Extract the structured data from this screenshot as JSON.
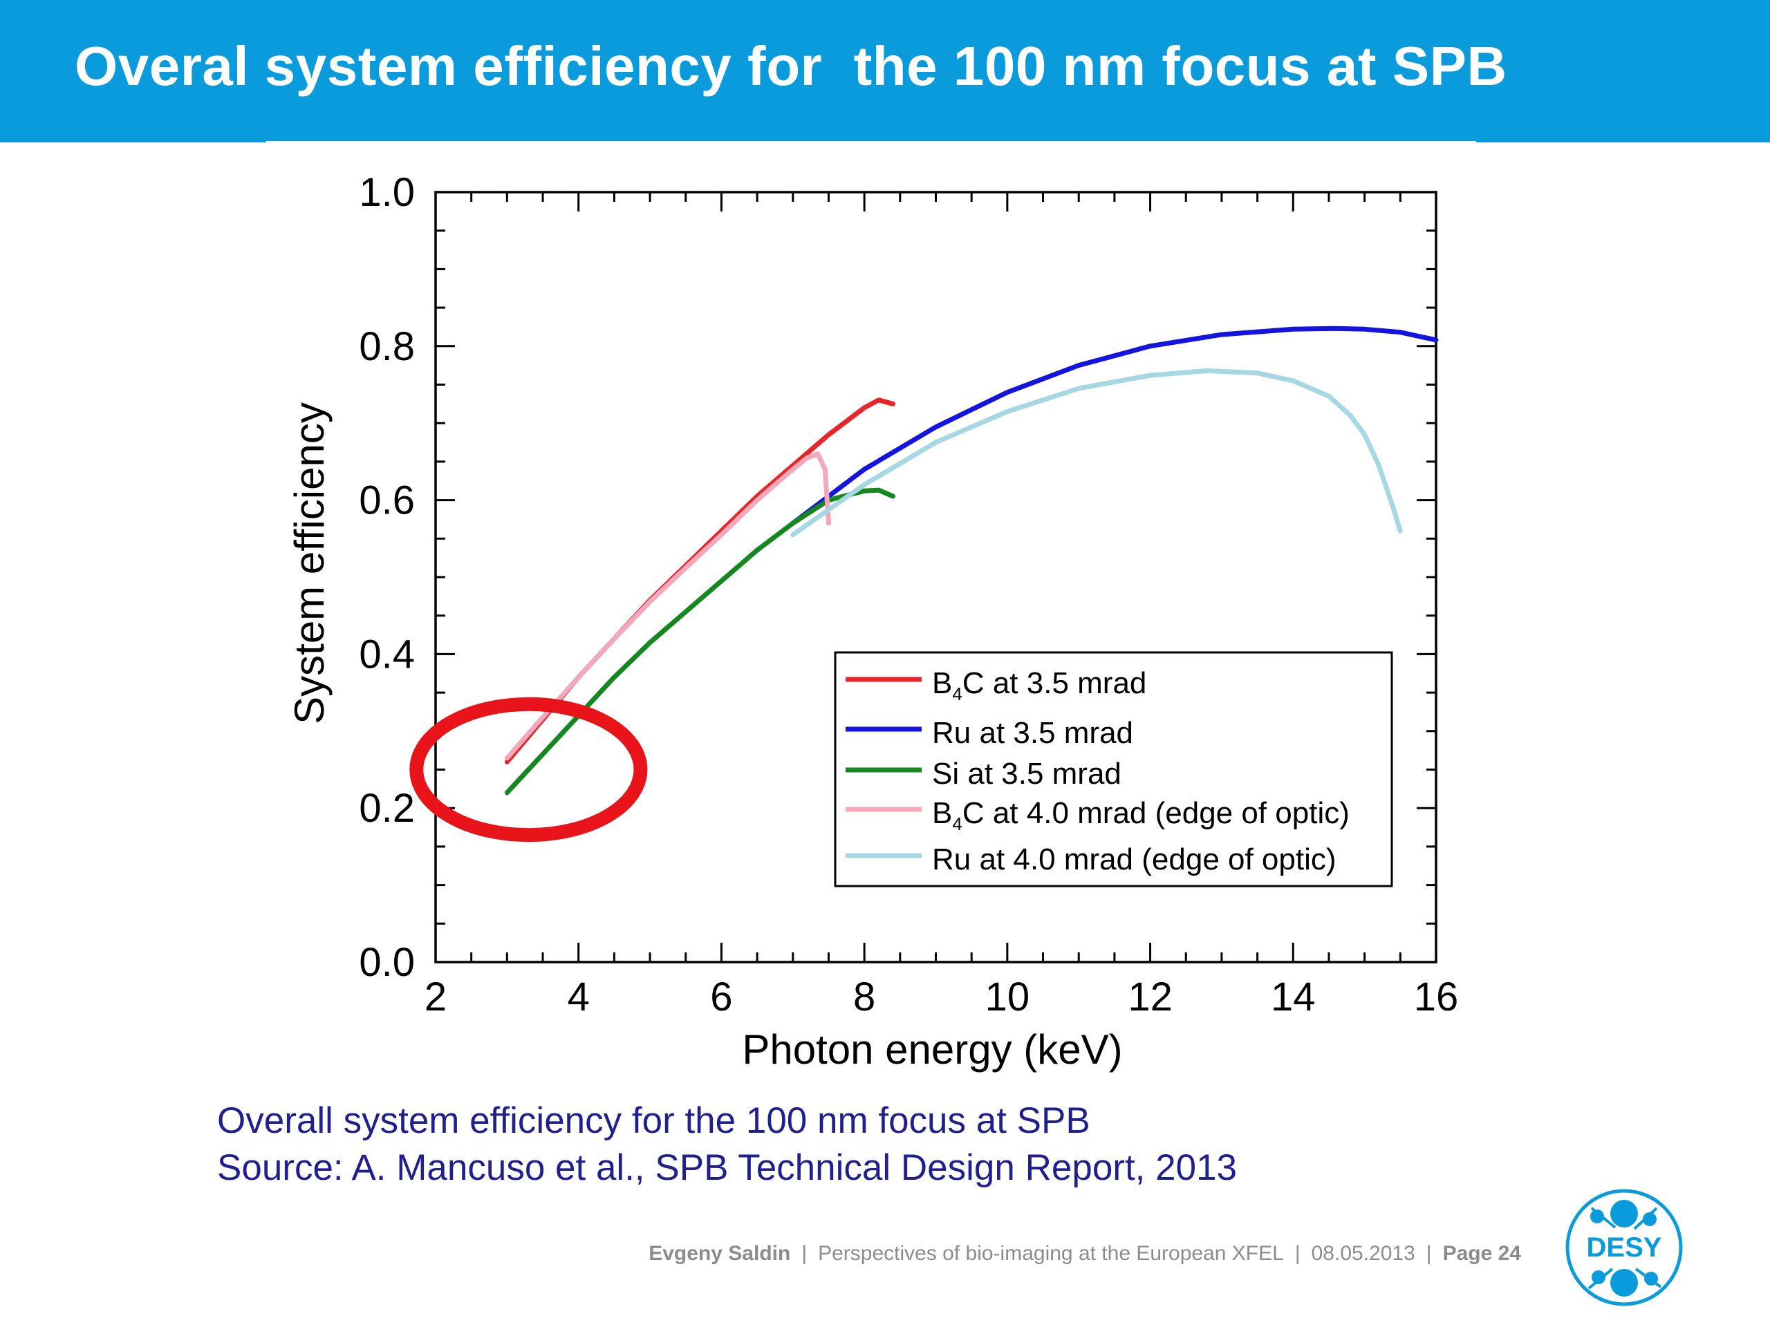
{
  "slide": {
    "title": "Overal system efficiency for  the 100 nm focus at SPB",
    "caption_line1": "Overall system efficiency for the 100 nm focus at SPB",
    "caption_line2": "Source: A. Mancuso et al., SPB Technical Design Report, 2013"
  },
  "footer": {
    "author": "Evgeny Saldin",
    "talk": "Perspectives of bio-imaging at the European XFEL",
    "date": "08.05.2013",
    "page": "Page 24",
    "separator": "|"
  },
  "logo": {
    "text": "DESY",
    "icon": "desy-logo-icon",
    "color": "#0a9bdc"
  },
  "colors": {
    "header": "#0a9bdc",
    "caption": "#1f1f8f",
    "highlight": "#e8141a"
  },
  "chart_data": {
    "type": "line",
    "xlabel": "Photon energy (keV)",
    "ylabel": "System efficiency",
    "xlim": [
      2,
      16
    ],
    "ylim": [
      0.0,
      1.0
    ],
    "xticks": [
      "2",
      "4",
      "6",
      "8",
      "10",
      "12",
      "14",
      "16"
    ],
    "yticks": [
      "0.0",
      "0.2",
      "0.4",
      "0.6",
      "0.8",
      "1.0"
    ],
    "legend_position": "lower-right",
    "series": [
      {
        "name_parts": [
          "B",
          "4",
          "C at 3.5 mrad"
        ],
        "color": "#e8262a",
        "x": [
          3.0,
          3.5,
          4.0,
          4.5,
          5.0,
          5.5,
          6.0,
          6.5,
          7.0,
          7.5,
          8.0,
          8.2,
          8.4
        ],
        "y": [
          0.26,
          0.315,
          0.37,
          0.42,
          0.47,
          0.515,
          0.56,
          0.605,
          0.645,
          0.685,
          0.72,
          0.73,
          0.725
        ]
      },
      {
        "name_parts": [
          "Ru at 3.5 mrad"
        ],
        "color": "#1414e0",
        "x": [
          7.0,
          8.0,
          9.0,
          10.0,
          11.0,
          12.0,
          13.0,
          14.0,
          14.6,
          15.0,
          15.5,
          16.0
        ],
        "y": [
          0.57,
          0.64,
          0.695,
          0.74,
          0.775,
          0.8,
          0.815,
          0.822,
          0.823,
          0.822,
          0.818,
          0.808
        ]
      },
      {
        "name_parts": [
          "Si at 3.5 mrad"
        ],
        "color": "#14881e",
        "x": [
          3.0,
          3.5,
          4.0,
          4.5,
          5.0,
          5.5,
          6.0,
          6.5,
          7.0,
          7.5,
          8.0,
          8.2,
          8.4
        ],
        "y": [
          0.22,
          0.27,
          0.32,
          0.37,
          0.415,
          0.455,
          0.495,
          0.535,
          0.57,
          0.6,
          0.612,
          0.613,
          0.605
        ]
      },
      {
        "name_parts": [
          "B",
          "4",
          "C at 4.0 mrad (edge of optic)"
        ],
        "color": "#f4a8bc",
        "x": [
          3.0,
          3.5,
          4.0,
          4.5,
          5.0,
          5.5,
          6.0,
          6.5,
          7.0,
          7.2,
          7.35,
          7.45,
          7.5
        ],
        "y": [
          0.265,
          0.318,
          0.37,
          0.42,
          0.468,
          0.512,
          0.555,
          0.6,
          0.64,
          0.655,
          0.66,
          0.64,
          0.57
        ]
      },
      {
        "name_parts": [
          "Ru at 4.0 mrad (edge of optic)"
        ],
        "color": "#a6d8e4",
        "x": [
          7.0,
          8.0,
          9.0,
          10.0,
          11.0,
          12.0,
          12.8,
          13.5,
          14.0,
          14.5,
          14.8,
          15.0,
          15.2,
          15.4,
          15.5
        ],
        "y": [
          0.555,
          0.62,
          0.675,
          0.715,
          0.745,
          0.762,
          0.768,
          0.765,
          0.755,
          0.735,
          0.71,
          0.685,
          0.645,
          0.59,
          0.56
        ]
      }
    ],
    "annotation": {
      "type": "ellipse",
      "color": "#e8141a",
      "cx": 3.3,
      "cy": 0.25,
      "rx": 1.6,
      "ry": 0.085
    }
  }
}
